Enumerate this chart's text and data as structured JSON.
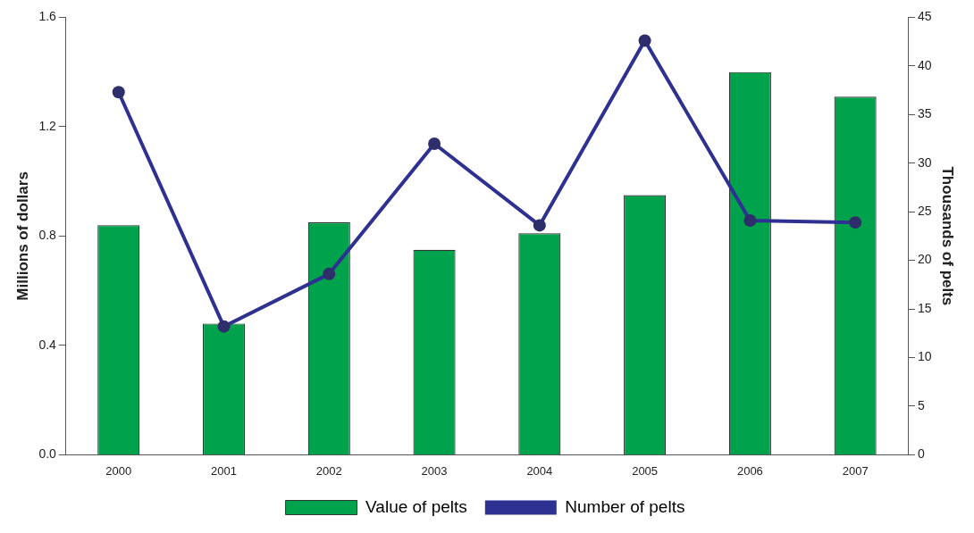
{
  "chart_data": {
    "type": "bar",
    "categories": [
      "2000",
      "2001",
      "2002",
      "2003",
      "2004",
      "2005",
      "2006",
      "2007"
    ],
    "series": [
      {
        "name": "Value of pelts",
        "color": "#00a34b",
        "values": [
          0.84,
          0.48,
          0.85,
          0.75,
          0.81,
          0.95,
          1.4,
          1.31
        ]
      },
      {
        "name": "Number of pelts",
        "type": "line",
        "axis": "y2",
        "color": "#2e3192",
        "marker": "circle",
        "values": [
          37.3,
          13.2,
          18.6,
          32,
          23.6,
          42.6,
          24.1,
          23.9
        ]
      }
    ],
    "ylabel": "Millions of dollars",
    "y2label": "Thousands of pelts",
    "ylim": [
      0,
      1.6
    ],
    "yticks": [
      {
        "value": 0,
        "label": "0.0"
      },
      0.4,
      0.8,
      1.2,
      1.6
    ],
    "y2lim": [
      0,
      45
    ],
    "y2ticks": [
      0,
      5,
      10,
      15,
      20,
      25,
      30,
      35,
      40,
      45
    ],
    "legend": "bottom"
  }
}
